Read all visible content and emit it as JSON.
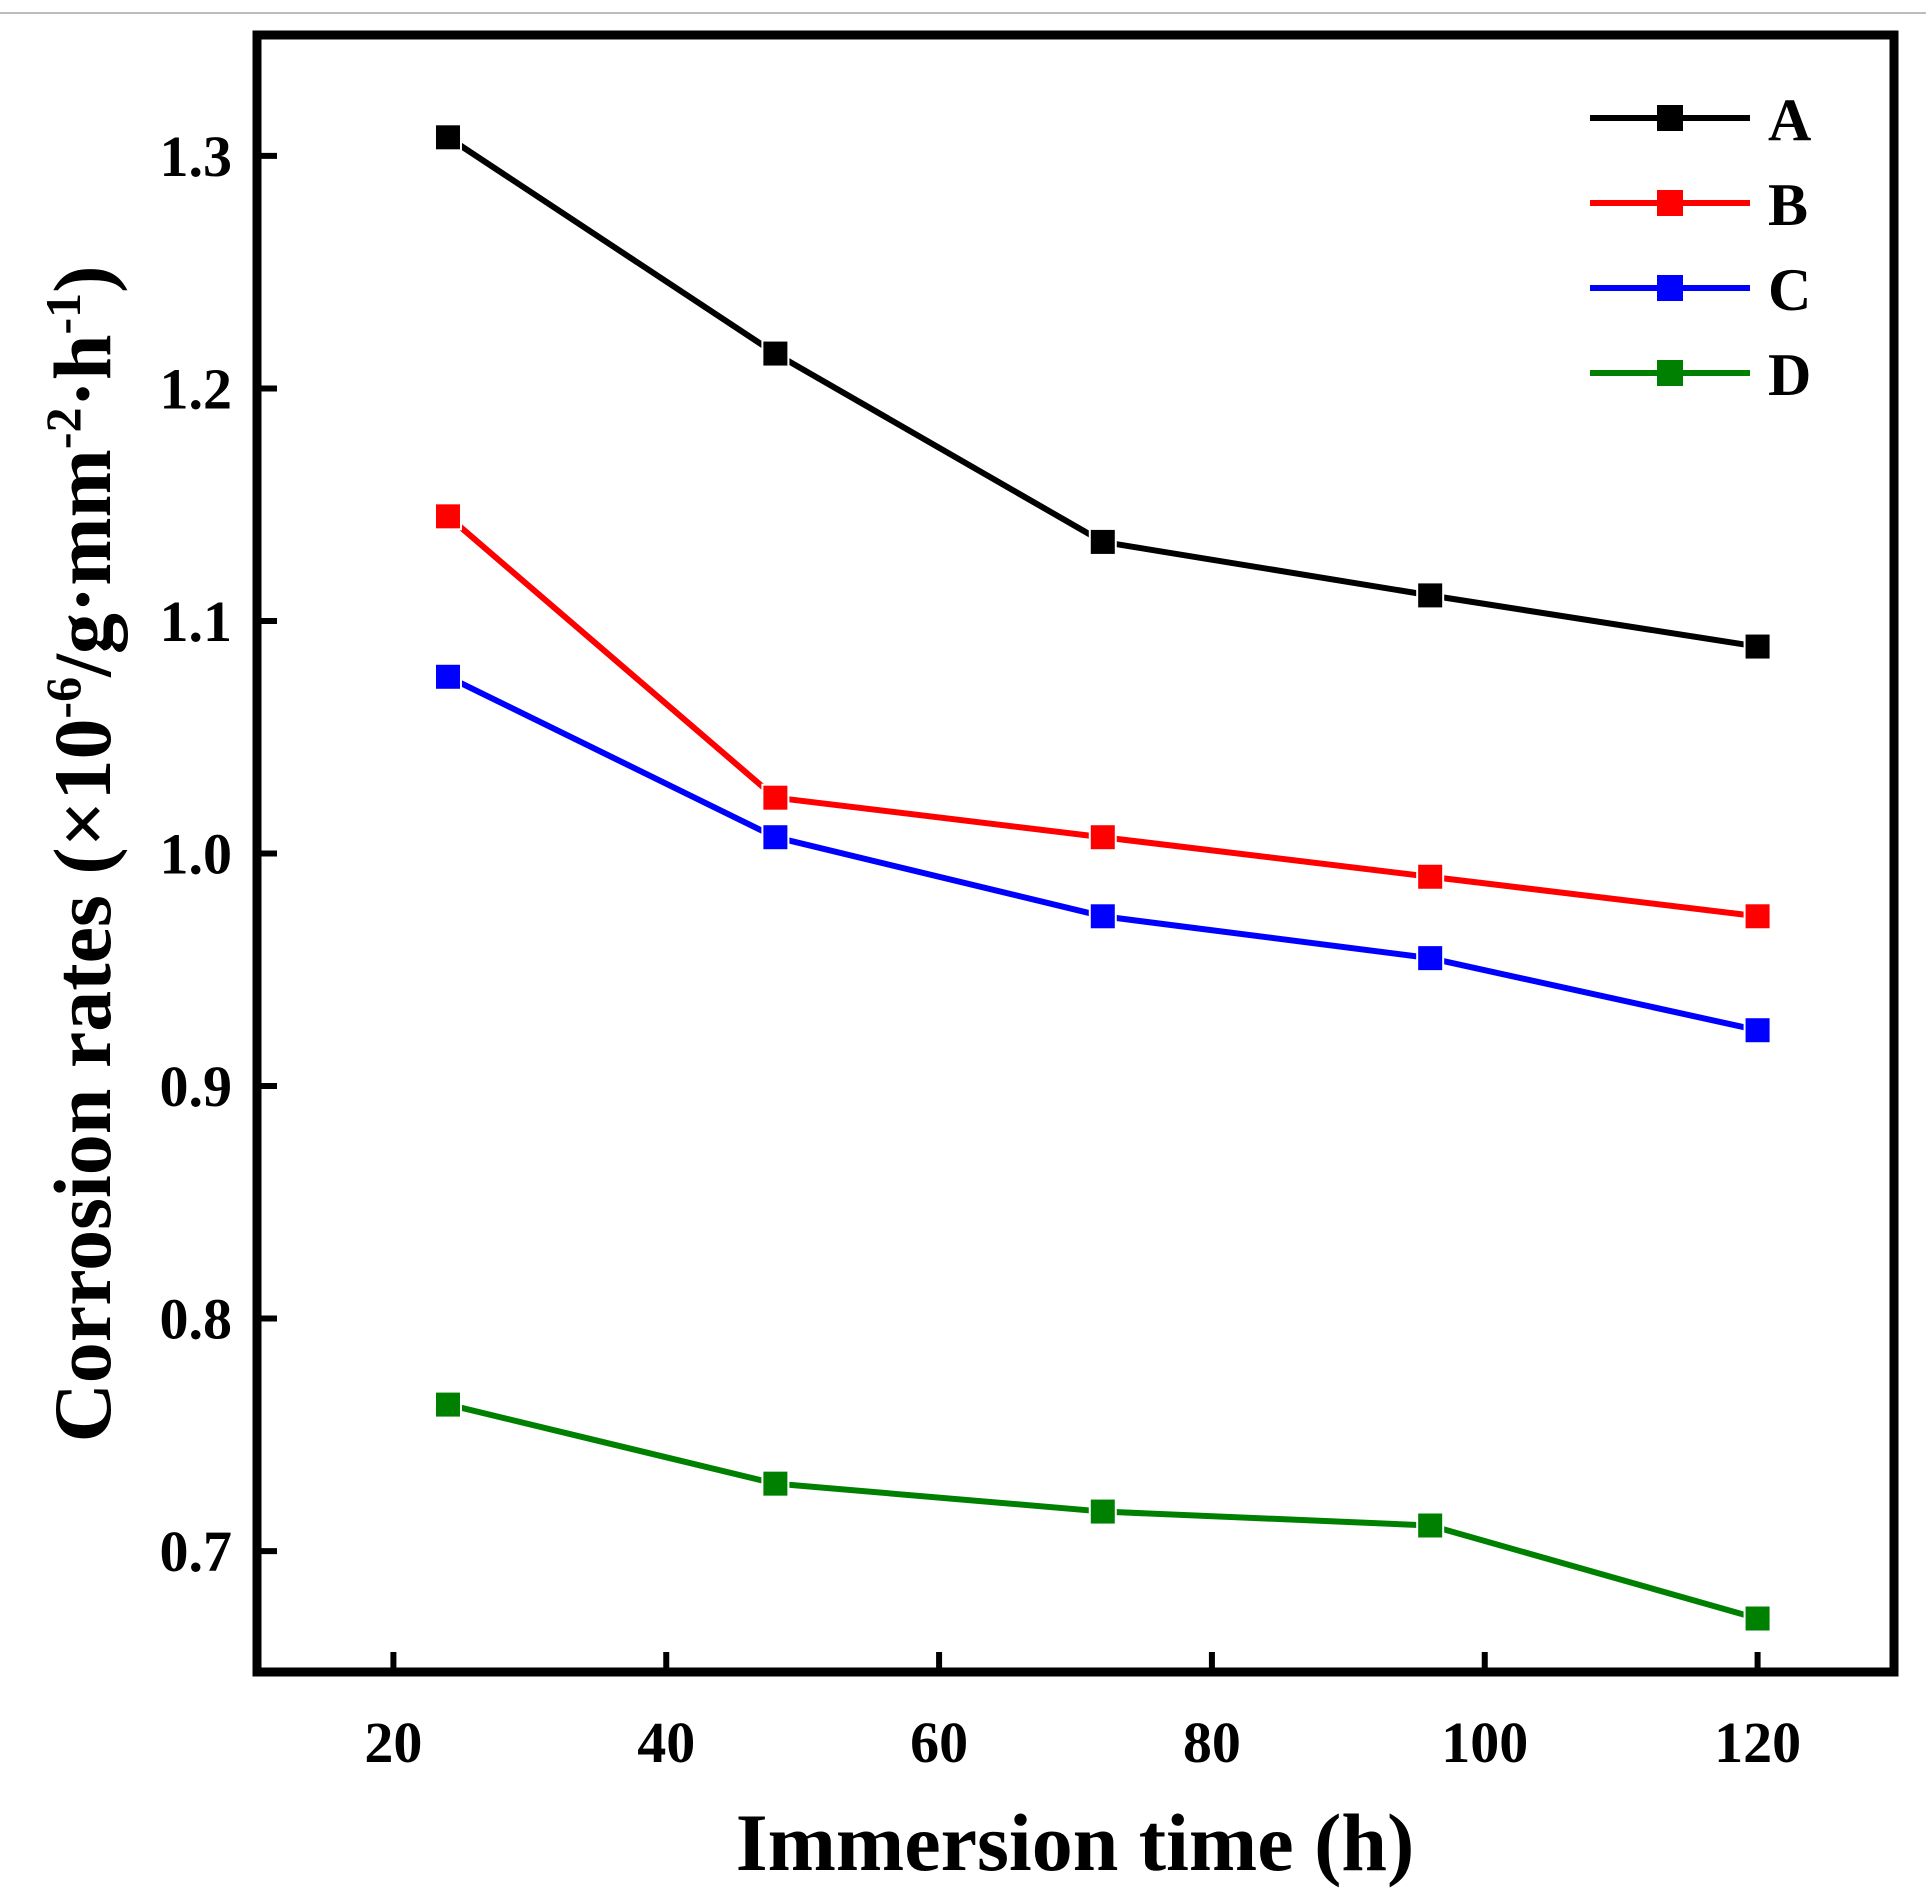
{
  "chart_data": {
    "type": "line",
    "title": "",
    "xlabel": "Immersion time (h)",
    "ylabel_parts": {
      "prefix": "Corrosion rates (×10",
      "sup1": "-6",
      "mid": "/g·mm",
      "sup2": "-2",
      "mid2": "·h",
      "sup3": "-1",
      "suffix": ")"
    },
    "x": [
      24,
      48,
      72,
      96,
      120
    ],
    "xlim": [
      10,
      130
    ],
    "ylim": [
      0.648,
      1.352
    ],
    "xticks": [
      20,
      40,
      60,
      80,
      100,
      120
    ],
    "yticks": [
      0.7,
      0.8,
      0.9,
      1.0,
      1.1,
      1.2,
      1.3
    ],
    "xtick_labels": [
      "20",
      "40",
      "60",
      "80",
      "100",
      "120"
    ],
    "ytick_labels": [
      "0.7",
      "0.8",
      "0.9",
      "1.0",
      "1.1",
      "1.2",
      "1.3"
    ],
    "grid": false,
    "legend_position": "top-right",
    "series": [
      {
        "name": "A",
        "color": "#000000",
        "values": [
          1.308,
          1.215,
          1.134,
          1.111,
          1.089
        ]
      },
      {
        "name": "B",
        "color": "#ff0000",
        "values": [
          1.145,
          1.024,
          1.007,
          0.99,
          0.973
        ]
      },
      {
        "name": "C",
        "color": "#0000ff",
        "values": [
          1.076,
          1.007,
          0.973,
          0.955,
          0.924
        ]
      },
      {
        "name": "D",
        "color": "#008000",
        "values": [
          0.763,
          0.729,
          0.717,
          0.711,
          0.671
        ]
      }
    ]
  }
}
